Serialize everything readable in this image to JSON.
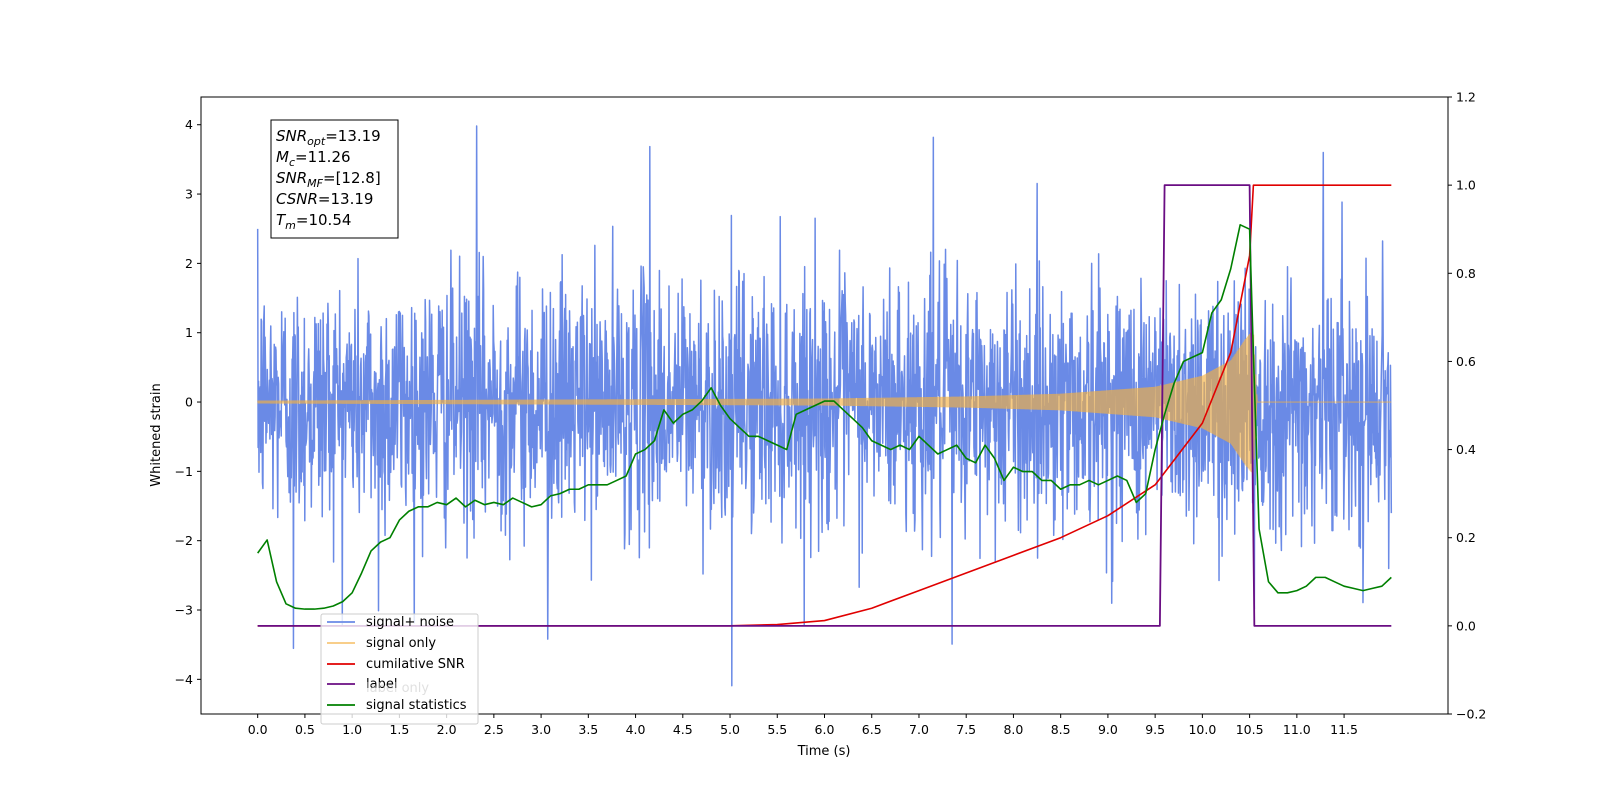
{
  "chart_data": {
    "type": "line",
    "xlabel": "Time (s)",
    "ylabel": "Whitened strain",
    "xlim": [
      -0.6,
      12.6
    ],
    "ylim_left": [
      -4.5,
      4.4
    ],
    "ylim_right": [
      -0.2,
      1.2
    ],
    "x_ticks": [
      "0.0",
      "0.5",
      "1.0",
      "1.5",
      "2.0",
      "2.5",
      "3.0",
      "3.5",
      "4.0",
      "4.5",
      "5.0",
      "5.5",
      "6.0",
      "6.5",
      "7.0",
      "7.5",
      "8.0",
      "8.5",
      "9.0",
      "9.5",
      "10.0",
      "10.5",
      "11.0",
      "11.5"
    ],
    "y_ticks_left": [
      "4",
      "3",
      "2",
      "1",
      "0",
      "−1",
      "−2",
      "−3",
      "−4"
    ],
    "y_ticks_right": [
      "1.2",
      "1.0",
      "0.8",
      "0.6",
      "0.4",
      "0.2",
      "0.0",
      "−0.2"
    ],
    "grid": false,
    "legend_position": "lower-left",
    "annotation": {
      "lines": [
        {
          "base": "SNR",
          "sub": "opt",
          "value": "=13.19"
        },
        {
          "base": "M",
          "sub": "c",
          "value": "=11.26"
        },
        {
          "base": "SNR",
          "sub": "MF",
          "value": "=[12.8]"
        },
        {
          "base": "CSNR",
          "sub": "",
          "value": "=13.19"
        },
        {
          "base": "T",
          "sub": "m",
          "value": "=10.54"
        }
      ]
    },
    "series": [
      {
        "name": "signal+ noise",
        "axis": "left",
        "color": "#6a8ae6",
        "noise_sigma": 0.9,
        "x_start": 0.0,
        "x_end": 12.0,
        "notable_extremes": [
          {
            "x": 0.38,
            "y": -3.55
          },
          {
            "x": 1.28,
            "y": -3.0
          },
          {
            "x": 2.32,
            "y": 4.0
          },
          {
            "x": 3.07,
            "y": -3.4
          },
          {
            "x": 4.15,
            "y": 3.7
          },
          {
            "x": 5.02,
            "y": -4.1
          },
          {
            "x": 7.15,
            "y": 3.85
          },
          {
            "x": 7.35,
            "y": -3.45
          },
          {
            "x": 10.55,
            "y": -3.45
          },
          {
            "x": 11.28,
            "y": 3.6
          }
        ]
      },
      {
        "name": "signal only",
        "axis": "left",
        "color": "#f5b041",
        "x_start": 0.0,
        "x_end": 12.0,
        "merger_time": 10.54,
        "envelope": [
          [
            0.0,
            0.02
          ],
          [
            6.0,
            0.05
          ],
          [
            7.5,
            0.08
          ],
          [
            8.5,
            0.12
          ],
          [
            9.5,
            0.22
          ],
          [
            10.0,
            0.38
          ],
          [
            10.3,
            0.6
          ],
          [
            10.45,
            0.9
          ],
          [
            10.54,
            1.05
          ],
          [
            10.58,
            0.0
          ],
          [
            12.0,
            0.0
          ]
        ]
      },
      {
        "name": "cumilative SNR",
        "axis": "right",
        "color": "#e00000",
        "x": [
          0.0,
          5.0,
          5.5,
          6.0,
          6.5,
          7.0,
          7.5,
          8.0,
          8.5,
          9.0,
          9.5,
          10.0,
          10.3,
          10.5,
          10.54,
          10.6,
          12.0
        ],
        "y": [
          0.0,
          0.0,
          0.003,
          0.012,
          0.04,
          0.08,
          0.12,
          0.16,
          0.2,
          0.25,
          0.32,
          0.46,
          0.62,
          0.84,
          1.0,
          1.0,
          1.0
        ]
      },
      {
        "name": "label",
        "axis": "right",
        "color": "#6a0d83",
        "x": [
          0.0,
          9.55,
          9.6,
          10.5,
          10.55,
          12.0
        ],
        "y": [
          0.0,
          0.0,
          1.0,
          1.0,
          0.0,
          0.0
        ]
      },
      {
        "name": "label only",
        "axis": "right",
        "color": "#6a0d83",
        "hidden": true
      },
      {
        "name": "signal statistics",
        "axis": "right",
        "color": "#008000",
        "x": [
          0.0,
          0.1,
          0.2,
          0.3,
          0.4,
          0.5,
          0.6,
          0.7,
          0.8,
          0.9,
          1.0,
          1.1,
          1.2,
          1.3,
          1.4,
          1.5,
          1.6,
          1.7,
          1.8,
          1.9,
          2.0,
          2.1,
          2.2,
          2.3,
          2.4,
          2.5,
          2.6,
          2.7,
          2.8,
          2.9,
          3.0,
          3.1,
          3.2,
          3.3,
          3.4,
          3.5,
          3.6,
          3.7,
          3.8,
          3.9,
          4.0,
          4.1,
          4.2,
          4.3,
          4.4,
          4.5,
          4.6,
          4.7,
          4.8,
          4.9,
          5.0,
          5.1,
          5.2,
          5.3,
          5.4,
          5.5,
          5.6,
          5.7,
          5.8,
          5.9,
          6.0,
          6.1,
          6.2,
          6.3,
          6.4,
          6.5,
          6.6,
          6.7,
          6.8,
          6.9,
          7.0,
          7.1,
          7.2,
          7.3,
          7.4,
          7.5,
          7.6,
          7.7,
          7.8,
          7.9,
          8.0,
          8.1,
          8.2,
          8.3,
          8.4,
          8.5,
          8.6,
          8.7,
          8.8,
          8.9,
          9.0,
          9.1,
          9.2,
          9.3,
          9.4,
          9.5,
          9.6,
          9.7,
          9.8,
          9.9,
          10.0,
          10.1,
          10.2,
          10.3,
          10.4,
          10.5,
          10.55,
          10.6,
          10.7,
          10.8,
          10.9,
          11.0,
          11.1,
          11.2,
          11.3,
          11.4,
          11.5,
          11.6,
          11.7,
          11.8,
          11.9,
          12.0
        ],
        "y": [
          0.165,
          0.195,
          0.1,
          0.05,
          0.04,
          0.038,
          0.038,
          0.04,
          0.045,
          0.055,
          0.075,
          0.12,
          0.17,
          0.19,
          0.2,
          0.24,
          0.26,
          0.27,
          0.27,
          0.28,
          0.275,
          0.29,
          0.27,
          0.285,
          0.275,
          0.28,
          0.275,
          0.29,
          0.28,
          0.27,
          0.275,
          0.295,
          0.3,
          0.31,
          0.31,
          0.32,
          0.32,
          0.32,
          0.33,
          0.34,
          0.39,
          0.4,
          0.42,
          0.49,
          0.46,
          0.48,
          0.49,
          0.51,
          0.54,
          0.5,
          0.47,
          0.45,
          0.43,
          0.43,
          0.42,
          0.41,
          0.4,
          0.48,
          0.49,
          0.5,
          0.51,
          0.51,
          0.49,
          0.47,
          0.45,
          0.42,
          0.41,
          0.4,
          0.41,
          0.4,
          0.43,
          0.41,
          0.39,
          0.4,
          0.41,
          0.38,
          0.37,
          0.41,
          0.38,
          0.33,
          0.36,
          0.35,
          0.35,
          0.33,
          0.33,
          0.31,
          0.32,
          0.32,
          0.33,
          0.32,
          0.33,
          0.34,
          0.33,
          0.28,
          0.3,
          0.4,
          0.48,
          0.55,
          0.6,
          0.61,
          0.62,
          0.71,
          0.74,
          0.81,
          0.91,
          0.9,
          0.55,
          0.22,
          0.1,
          0.075,
          0.075,
          0.08,
          0.09,
          0.11,
          0.11,
          0.1,
          0.09,
          0.085,
          0.08,
          0.085,
          0.09,
          0.11
        ]
      }
    ]
  }
}
